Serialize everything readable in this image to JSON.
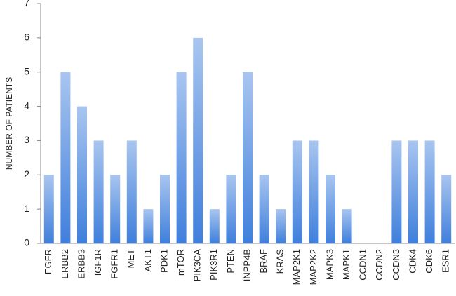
{
  "chart_data": {
    "type": "bar",
    "y_label": "NUMBER OF PATIENTS",
    "categories": [
      "EGFR",
      "ERBB2",
      "ERBB3",
      "IGF1R",
      "FGFR1",
      "MET",
      "AKT1",
      "PDK1",
      "mTOR",
      "PIK3CA",
      "PIK3R1",
      "PTEN",
      "INPP4B",
      "BRAF",
      "KRAS",
      "MAP2K1",
      "MAP2K2",
      "MAPK3",
      "MAPK1",
      "CCDN1",
      "CCDN2",
      "CCDN3",
      "CDK4",
      "CDK6",
      "ESR1"
    ],
    "values": [
      2,
      5,
      4,
      3,
      2,
      3,
      1,
      2,
      5,
      6,
      1,
      2,
      5,
      2,
      1,
      3,
      3,
      2,
      1,
      0,
      0,
      3,
      3,
      3,
      2
    ],
    "color": "#3f7fdc",
    "ylim": [
      0,
      7
    ],
    "yticks": [
      0,
      1,
      2,
      3,
      4,
      5,
      6,
      7
    ],
    "grid": false
  }
}
